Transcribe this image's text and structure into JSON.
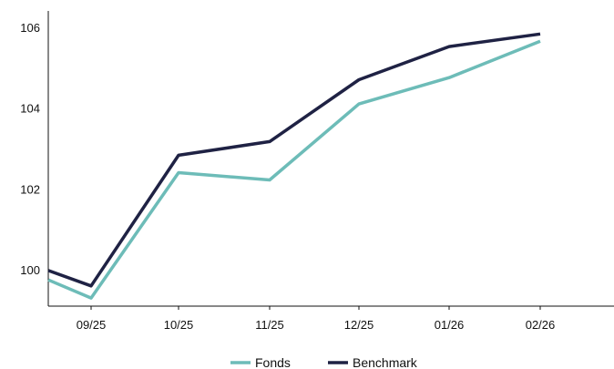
{
  "chart_data": {
    "type": "line",
    "categories": [
      "",
      "09/25",
      "10/25",
      "11/25",
      "12/25",
      "01/26",
      "02/26"
    ],
    "y_ticks": [
      "100",
      "102",
      "104",
      "106"
    ],
    "ylim": [
      99.1,
      106.4
    ],
    "x_start": "",
    "series": [
      {
        "name": "Fonds",
        "color": "#6dbcb8",
        "values": [
          99.75,
          99.3,
          102.4,
          102.22,
          104.1,
          104.75,
          105.65
        ]
      },
      {
        "name": "Benchmark",
        "color": "#1f2244",
        "values": [
          99.98,
          99.6,
          102.83,
          103.17,
          104.7,
          105.52,
          105.83
        ]
      }
    ],
    "grid": false,
    "legend": "bottom-center"
  }
}
